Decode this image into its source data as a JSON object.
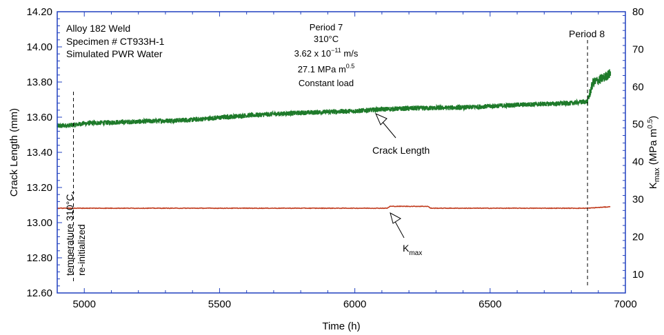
{
  "chart_data": {
    "type": "line",
    "xlabel": "Time (h)",
    "ylabel_left": "Crack Length (mm)",
    "ylabel_right": {
      "main": "K",
      "sub": "max",
      "rest": " (MPa m",
      "sup": "0.5",
      "end": ")"
    },
    "xlim": [
      4900,
      7000
    ],
    "ylim_left": [
      12.6,
      14.2
    ],
    "ylim_right": [
      5,
      80
    ],
    "x_ticks": [
      5000,
      5500,
      6000,
      6500,
      7000
    ],
    "y_left_ticks": [
      "12.60",
      "12.80",
      "13.00",
      "13.20",
      "13.40",
      "13.60",
      "13.80",
      "14.00",
      "14.20"
    ],
    "y_right_ticks": [
      10,
      20,
      30,
      40,
      50,
      60,
      70,
      80
    ],
    "info_lines": [
      "Alloy 182 Weld",
      "Specimen # CT933H-1",
      "Simulated PWR Water"
    ],
    "period7": {
      "title": "Period 7",
      "temp": "310°C",
      "rate_base": "3.62 x 10",
      "rate_exp": "−11",
      "rate_unit": " m/s",
      "k_base": "27.1 MPa m",
      "k_exp": "0.5",
      "load": "Constant load"
    },
    "period8_label": "Period  8",
    "event_lines": [
      {
        "x": 4960,
        "label_lines": [
          "temperature 310°C,",
          "re-initialized"
        ]
      },
      {
        "x": 6860
      }
    ],
    "annotations": {
      "crack_length": "Crack Length",
      "kmax_main": "K",
      "kmax_sub": "max"
    },
    "series": [
      {
        "name": "Crack Length",
        "axis": "left",
        "color": "#1e7a2a",
        "x": [
          4900,
          4960,
          5000,
          5200,
          5400,
          5600,
          5800,
          6000,
          6100,
          6200,
          6400,
          6600,
          6800,
          6860,
          6880,
          6900,
          6920,
          6945
        ],
        "y": [
          13.55,
          13.555,
          13.565,
          13.575,
          13.585,
          13.61,
          13.625,
          13.635,
          13.645,
          13.65,
          13.655,
          13.67,
          13.68,
          13.69,
          13.795,
          13.81,
          13.825,
          13.85
        ]
      },
      {
        "name": "Kmax",
        "axis": "right",
        "color": "#c0391b",
        "x": [
          4900,
          6120,
          6130,
          6270,
          6280,
          6860,
          6945
        ],
        "y": [
          27.6,
          27.6,
          28.1,
          28.1,
          27.6,
          27.6,
          28.0
        ]
      }
    ]
  }
}
